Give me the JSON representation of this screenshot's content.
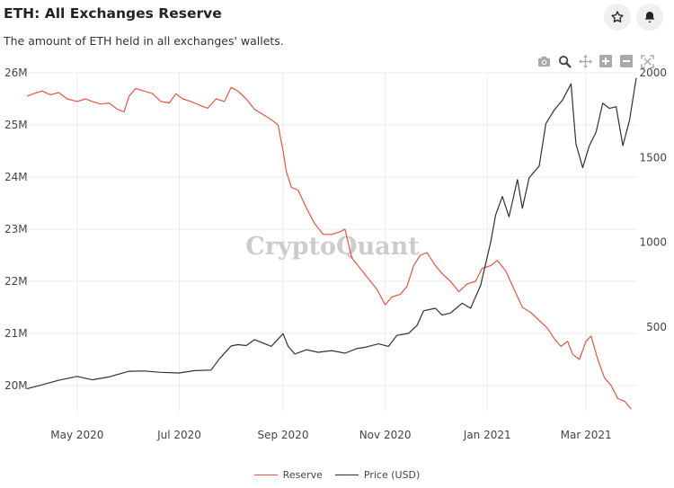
{
  "header": {
    "title": "ETH: All Exchanges Reserve",
    "subtitle": "The amount of ETH held in all exchanges' wallets."
  },
  "actions": {
    "favorite_icon": "star-icon",
    "alert_icon": "bell-icon"
  },
  "modebar": [
    "camera-icon",
    "zoom-icon",
    "pan-icon",
    "zoom-in-icon",
    "zoom-out-icon",
    "autoscale-icon"
  ],
  "watermark": "CryptoQuant",
  "colors": {
    "reserve": "#e8553f",
    "price": "#2b323a",
    "grid": "#ebebeb",
    "text": "#444444"
  },
  "legend": [
    {
      "label": "Reserve",
      "color": "#e8553f"
    },
    {
      "label": "Price (USD)",
      "color": "#2b323a"
    }
  ],
  "chart_data": {
    "type": "line",
    "title": "ETH: All Exchanges Reserve",
    "x_range": [
      "2020-04-01",
      "2021-03-31"
    ],
    "x_ticks": [
      {
        "date": "2020-05-01",
        "label": "May 2020"
      },
      {
        "date": "2020-07-01",
        "label": "Jul 2020"
      },
      {
        "date": "2020-09-01",
        "label": "Sep 2020"
      },
      {
        "date": "2020-11-01",
        "label": "Nov 2020"
      },
      {
        "date": "2021-01-01",
        "label": "Jan 2021"
      },
      {
        "date": "2021-03-01",
        "label": "Mar 2021"
      }
    ],
    "y_left": {
      "range": [
        19500000,
        26000000
      ],
      "ticks": [
        {
          "value": 20000000,
          "label": "20M"
        },
        {
          "value": 21000000,
          "label": "21M"
        },
        {
          "value": 22000000,
          "label": "22M"
        },
        {
          "value": 23000000,
          "label": "23M"
        },
        {
          "value": 24000000,
          "label": "24M"
        },
        {
          "value": 25000000,
          "label": "25M"
        },
        {
          "value": 26000000,
          "label": "26M"
        }
      ]
    },
    "y_right": {
      "range": [
        0,
        2000
      ],
      "ticks": [
        {
          "value": 500,
          "label": "500"
        },
        {
          "value": 1000,
          "label": "1000"
        },
        {
          "value": 1500,
          "label": "1500"
        },
        {
          "value": 2000,
          "label": "2000"
        }
      ]
    },
    "grid": true,
    "legend_position": "bottom",
    "series": [
      {
        "name": "Reserve",
        "axis": "left",
        "points": [
          [
            "2020-04-01",
            25550000
          ],
          [
            "2020-04-05",
            25600000
          ],
          [
            "2020-04-10",
            25650000
          ],
          [
            "2020-04-15",
            25580000
          ],
          [
            "2020-04-20",
            25620000
          ],
          [
            "2020-04-25",
            25500000
          ],
          [
            "2020-05-01",
            25450000
          ],
          [
            "2020-05-06",
            25500000
          ],
          [
            "2020-05-10",
            25450000
          ],
          [
            "2020-05-15",
            25400000
          ],
          [
            "2020-05-20",
            25420000
          ],
          [
            "2020-05-25",
            25300000
          ],
          [
            "2020-05-29",
            25250000
          ],
          [
            "2020-06-01",
            25550000
          ],
          [
            "2020-06-05",
            25700000
          ],
          [
            "2020-06-10",
            25650000
          ],
          [
            "2020-06-15",
            25600000
          ],
          [
            "2020-06-20",
            25450000
          ],
          [
            "2020-06-25",
            25420000
          ],
          [
            "2020-06-29",
            25600000
          ],
          [
            "2020-07-03",
            25500000
          ],
          [
            "2020-07-08",
            25450000
          ],
          [
            "2020-07-13",
            25380000
          ],
          [
            "2020-07-18",
            25320000
          ],
          [
            "2020-07-23",
            25500000
          ],
          [
            "2020-07-28",
            25450000
          ],
          [
            "2020-08-01",
            25720000
          ],
          [
            "2020-08-05",
            25650000
          ],
          [
            "2020-08-10",
            25500000
          ],
          [
            "2020-08-15",
            25300000
          ],
          [
            "2020-08-20",
            25200000
          ],
          [
            "2020-08-25",
            25100000
          ],
          [
            "2020-08-29",
            25000000
          ],
          [
            "2020-09-01",
            24500000
          ],
          [
            "2020-09-03",
            24100000
          ],
          [
            "2020-09-06",
            23800000
          ],
          [
            "2020-09-10",
            23750000
          ],
          [
            "2020-09-15",
            23400000
          ],
          [
            "2020-09-20",
            23100000
          ],
          [
            "2020-09-25",
            22900000
          ],
          [
            "2020-09-30",
            22900000
          ],
          [
            "2020-10-05",
            22950000
          ],
          [
            "2020-10-08",
            23000000
          ],
          [
            "2020-10-12",
            22450000
          ],
          [
            "2020-10-17",
            22250000
          ],
          [
            "2020-10-22",
            22050000
          ],
          [
            "2020-10-27",
            21850000
          ],
          [
            "2020-11-01",
            21550000
          ],
          [
            "2020-11-05",
            21700000
          ],
          [
            "2020-11-10",
            21750000
          ],
          [
            "2020-11-14",
            21900000
          ],
          [
            "2020-11-18",
            22300000
          ],
          [
            "2020-11-22",
            22500000
          ],
          [
            "2020-11-26",
            22550000
          ],
          [
            "2020-12-01",
            22300000
          ],
          [
            "2020-12-05",
            22150000
          ],
          [
            "2020-12-10",
            22000000
          ],
          [
            "2020-12-15",
            21800000
          ],
          [
            "2020-12-20",
            21950000
          ],
          [
            "2020-12-25",
            22000000
          ],
          [
            "2020-12-29",
            22250000
          ],
          [
            "2021-01-03",
            22300000
          ],
          [
            "2021-01-07",
            22400000
          ],
          [
            "2021-01-12",
            22200000
          ],
          [
            "2021-01-17",
            21850000
          ],
          [
            "2021-01-22",
            21500000
          ],
          [
            "2021-01-27",
            21400000
          ],
          [
            "2021-02-01",
            21250000
          ],
          [
            "2021-02-06",
            21100000
          ],
          [
            "2021-02-10",
            20900000
          ],
          [
            "2021-02-14",
            20750000
          ],
          [
            "2021-02-18",
            20850000
          ],
          [
            "2021-02-21",
            20600000
          ],
          [
            "2021-02-25",
            20500000
          ],
          [
            "2021-03-01",
            20850000
          ],
          [
            "2021-03-04",
            20950000
          ],
          [
            "2021-03-08",
            20500000
          ],
          [
            "2021-03-12",
            20150000
          ],
          [
            "2021-03-16",
            20000000
          ],
          [
            "2021-03-20",
            19750000
          ],
          [
            "2021-03-24",
            19700000
          ],
          [
            "2021-03-28",
            19550000
          ]
        ]
      },
      {
        "name": "Price (USD)",
        "axis": "right",
        "points": [
          [
            "2020-04-01",
            135
          ],
          [
            "2020-04-10",
            158
          ],
          [
            "2020-04-20",
            185
          ],
          [
            "2020-05-01",
            208
          ],
          [
            "2020-05-10",
            188
          ],
          [
            "2020-05-20",
            205
          ],
          [
            "2020-06-01",
            238
          ],
          [
            "2020-06-10",
            240
          ],
          [
            "2020-06-20",
            232
          ],
          [
            "2020-07-01",
            228
          ],
          [
            "2020-07-10",
            242
          ],
          [
            "2020-07-20",
            245
          ],
          [
            "2020-07-25",
            312
          ],
          [
            "2020-08-01",
            388
          ],
          [
            "2020-08-05",
            395
          ],
          [
            "2020-08-10",
            390
          ],
          [
            "2020-08-15",
            425
          ],
          [
            "2020-08-20",
            405
          ],
          [
            "2020-08-25",
            385
          ],
          [
            "2020-09-01",
            460
          ],
          [
            "2020-09-04",
            385
          ],
          [
            "2020-09-08",
            340
          ],
          [
            "2020-09-15",
            365
          ],
          [
            "2020-09-22",
            350
          ],
          [
            "2020-09-30",
            360
          ],
          [
            "2020-10-08",
            345
          ],
          [
            "2020-10-15",
            372
          ],
          [
            "2020-10-20",
            380
          ],
          [
            "2020-10-28",
            400
          ],
          [
            "2020-11-03",
            385
          ],
          [
            "2020-11-08",
            450
          ],
          [
            "2020-11-15",
            462
          ],
          [
            "2020-11-20",
            508
          ],
          [
            "2020-11-24",
            595
          ],
          [
            "2020-12-01",
            610
          ],
          [
            "2020-12-05",
            570
          ],
          [
            "2020-12-10",
            582
          ],
          [
            "2020-12-17",
            640
          ],
          [
            "2020-12-22",
            610
          ],
          [
            "2020-12-28",
            745
          ],
          [
            "2021-01-03",
            1000
          ],
          [
            "2021-01-06",
            1160
          ],
          [
            "2021-01-10",
            1270
          ],
          [
            "2021-01-14",
            1150
          ],
          [
            "2021-01-19",
            1370
          ],
          [
            "2021-01-22",
            1200
          ],
          [
            "2021-01-26",
            1380
          ],
          [
            "2021-02-01",
            1450
          ],
          [
            "2021-02-05",
            1700
          ],
          [
            "2021-02-10",
            1780
          ],
          [
            "2021-02-15",
            1840
          ],
          [
            "2021-02-20",
            1935
          ],
          [
            "2021-02-23",
            1580
          ],
          [
            "2021-02-27",
            1440
          ],
          [
            "2021-03-03",
            1570
          ],
          [
            "2021-03-07",
            1650
          ],
          [
            "2021-03-11",
            1820
          ],
          [
            "2021-03-15",
            1790
          ],
          [
            "2021-03-19",
            1800
          ],
          [
            "2021-03-23",
            1570
          ],
          [
            "2021-03-27",
            1720
          ],
          [
            "2021-03-31",
            1970
          ]
        ]
      }
    ]
  }
}
